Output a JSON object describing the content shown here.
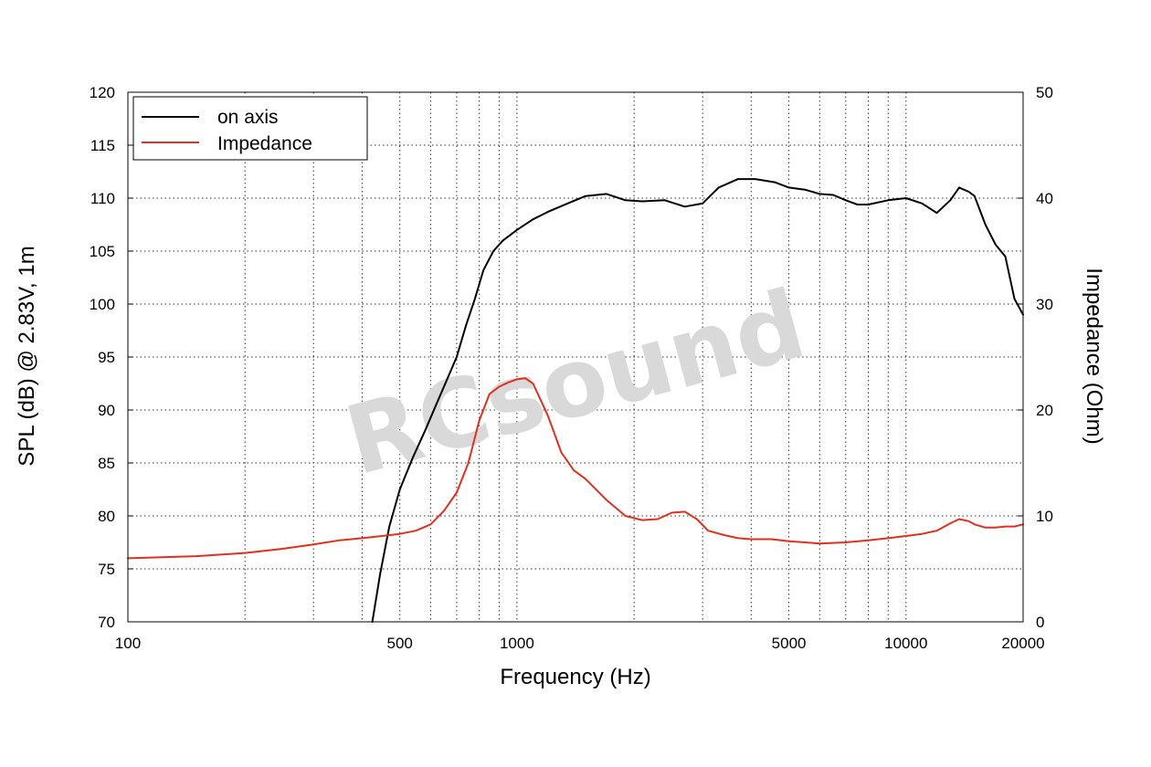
{
  "chart_data": {
    "type": "line",
    "title": "",
    "xlabel": "Frequency (Hz)",
    "ylabel": "SPL (dB) @ 2.83V, 1m",
    "y2label": "Impedance (Ohm)",
    "xscale": "log",
    "xlim": [
      100,
      20000
    ],
    "ylim": [
      70,
      120
    ],
    "y2lim": [
      0,
      50
    ],
    "grid": true,
    "legend_position": "top-left",
    "watermark": "RCsound",
    "xticks": [
      100,
      500,
      1000,
      5000,
      10000,
      20000
    ],
    "xtick_labels": [
      "100",
      "500",
      "1000",
      "5000",
      "10000",
      "20000"
    ],
    "yticks": [
      70,
      75,
      80,
      85,
      90,
      95,
      100,
      105,
      110,
      115,
      120
    ],
    "ytick_labels": [
      "70",
      "75",
      "80",
      "85",
      "90",
      "95",
      "100",
      "105",
      "110",
      "115",
      "120"
    ],
    "y2ticks": [
      0,
      10,
      20,
      30,
      40,
      50
    ],
    "y2tick_labels": [
      "0",
      "10",
      "20",
      "30",
      "40",
      "50"
    ],
    "series": [
      {
        "name": "on axis",
        "axis": "left",
        "color": "#000000",
        "x": [
          425,
          445,
          470,
          500,
          540,
          580,
          620,
          660,
          700,
          740,
          780,
          820,
          870,
          920,
          960,
          1000,
          1100,
          1200,
          1350,
          1500,
          1700,
          1900,
          2100,
          2400,
          2700,
          3000,
          3300,
          3700,
          4100,
          4600,
          5000,
          5500,
          6000,
          6500,
          7000,
          7500,
          8000,
          9000,
          10000,
          11000,
          12000,
          13000,
          13700,
          14500,
          15000,
          16000,
          17000,
          18000,
          19000,
          20000
        ],
        "values": [
          70.0,
          74.5,
          79.0,
          82.5,
          85.5,
          88.0,
          90.5,
          92.8,
          95.0,
          98.0,
          100.5,
          103.2,
          105.0,
          106.0,
          106.5,
          107.0,
          108.0,
          108.7,
          109.5,
          110.2,
          110.4,
          109.8,
          109.7,
          109.8,
          109.2,
          109.5,
          111.0,
          111.8,
          111.8,
          111.5,
          111.0,
          110.8,
          110.4,
          110.3,
          109.8,
          109.4,
          109.4,
          109.8,
          110.0,
          109.5,
          108.6,
          109.8,
          111.0,
          110.6,
          110.2,
          107.5,
          105.6,
          104.5,
          100.5,
          99.0
        ]
      },
      {
        "name": "Impedance",
        "axis": "right",
        "color": "#e0301e",
        "x": [
          100,
          150,
          200,
          250,
          300,
          350,
          400,
          450,
          500,
          550,
          600,
          650,
          700,
          750,
          800,
          850,
          900,
          950,
          1000,
          1050,
          1100,
          1200,
          1300,
          1400,
          1500,
          1700,
          1900,
          2100,
          2300,
          2500,
          2700,
          2900,
          3100,
          3400,
          3700,
          4000,
          4500,
          5000,
          5500,
          6000,
          7000,
          8000,
          9000,
          10000,
          11000,
          12000,
          13000,
          13700,
          14500,
          15000,
          16000,
          17000,
          18000,
          19000,
          20000
        ],
        "values": [
          6.0,
          6.2,
          6.5,
          6.9,
          7.3,
          7.7,
          7.9,
          8.1,
          8.3,
          8.6,
          9.2,
          10.5,
          12.2,
          15.0,
          19.0,
          21.5,
          22.2,
          22.6,
          22.9,
          23.0,
          22.5,
          19.5,
          16.0,
          14.3,
          13.5,
          11.5,
          10.0,
          9.6,
          9.7,
          10.3,
          10.4,
          9.7,
          8.6,
          8.2,
          7.9,
          7.8,
          7.8,
          7.6,
          7.5,
          7.4,
          7.5,
          7.7,
          7.9,
          8.1,
          8.3,
          8.6,
          9.3,
          9.7,
          9.5,
          9.2,
          8.9,
          8.9,
          9.0,
          9.0,
          9.2
        ]
      }
    ]
  }
}
